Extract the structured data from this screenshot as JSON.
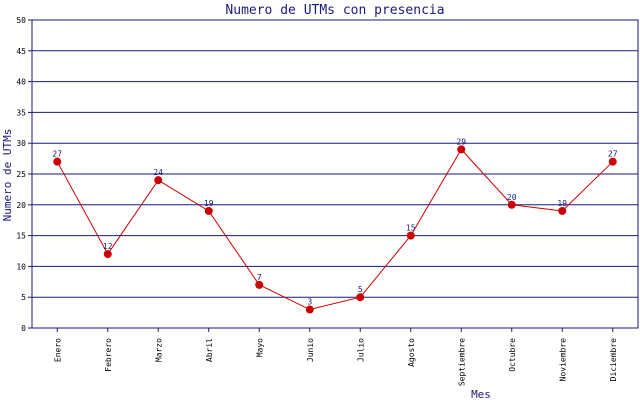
{
  "chart_data": {
    "type": "line",
    "title": "Numero de UTMs con presencia",
    "xlabel": "Mes",
    "ylabel": "Numero de UTMs",
    "categories": [
      "Enero",
      "Febrero",
      "Marzo",
      "Abril",
      "Mayo",
      "Junio",
      "Julio",
      "Agosto",
      "Septiembre",
      "Octubre",
      "Noviembre",
      "Diciembre"
    ],
    "values": [
      27,
      12,
      24,
      19,
      7,
      3,
      5,
      15,
      29,
      20,
      19,
      27
    ],
    "ylim": [
      0,
      50
    ],
    "yticks": [
      0,
      5,
      10,
      15,
      20,
      25,
      30,
      35,
      40,
      45,
      50
    ],
    "grid": true,
    "data_labels": true,
    "colors": {
      "line": "#cc0000",
      "marker": "#cc0000",
      "grid": "#1a1a7a",
      "text": "#1a1a7a"
    }
  }
}
